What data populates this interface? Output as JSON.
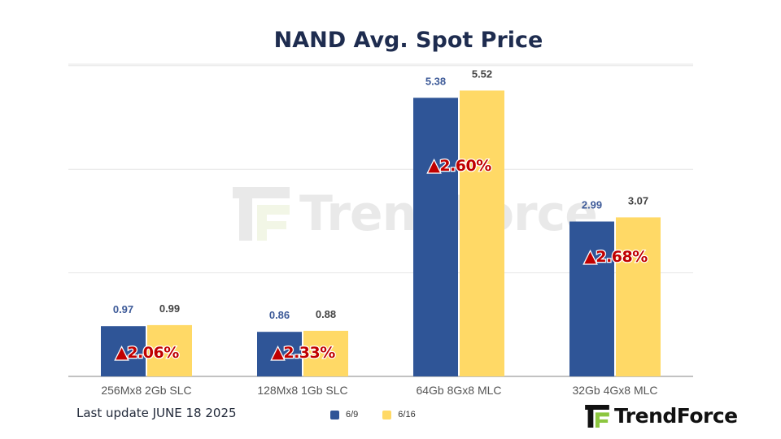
{
  "chart_data": {
    "type": "bar",
    "title": "NAND Avg. Spot Price",
    "categories": [
      "256Mx8 2Gb SLC",
      "128Mx8 1Gb SLC",
      "64Gb 8Gx8 MLC",
      "32Gb 4Gx8 MLC"
    ],
    "series": [
      {
        "name": "6/9",
        "color": "#2f5597",
        "label_color": "#3d5a98",
        "values": [
          0.97,
          0.86,
          5.38,
          2.99
        ]
      },
      {
        "name": "6/16",
        "color": "#ffd966",
        "label_color": "#444444",
        "values": [
          0.99,
          0.88,
          5.52,
          3.07
        ]
      }
    ],
    "value_labels": [
      [
        "0.97",
        "0.86",
        "5.38",
        "2.99"
      ],
      [
        "0.99",
        "0.88",
        "5.52",
        "3.07"
      ]
    ],
    "change_labels": [
      "▲2.06%",
      "▲2.33%",
      "▲2.60%",
      "▲2.68%"
    ],
    "ylim": [
      0,
      5.8
    ],
    "grid": true,
    "legend_position": "bottom-center",
    "xlabel": "",
    "ylabel": ""
  },
  "footer": {
    "last_update": "Last update JUNE 18 2025"
  },
  "brand": {
    "name": "TrendForce",
    "watermark": "TrendForce"
  }
}
